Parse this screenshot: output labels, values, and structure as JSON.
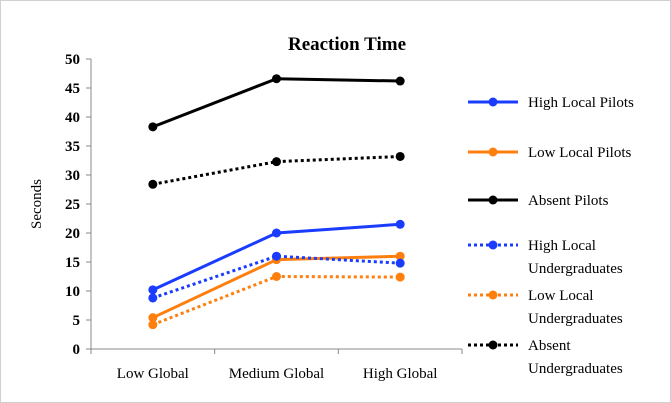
{
  "chart_data": {
    "type": "line",
    "title": "Reaction Time",
    "xlabel": "",
    "ylabel": "Seconds",
    "categories": [
      "Low Global",
      "Medium Global",
      "High Global"
    ],
    "ylim": [
      0,
      50
    ],
    "ytick_step": 5,
    "grid": false,
    "legend_position": "right",
    "series": [
      {
        "name": "High Local Pilots",
        "values": [
          10.2,
          20.0,
          21.5
        ],
        "color": "#1a3cff",
        "dash": "solid"
      },
      {
        "name": "Low Local Pilots",
        "values": [
          5.4,
          15.4,
          16.0
        ],
        "color": "#ff7f0e",
        "dash": "solid"
      },
      {
        "name": "Absent Pilots",
        "values": [
          38.3,
          46.6,
          46.2
        ],
        "color": "#000000",
        "dash": "solid"
      },
      {
        "name": "High Local Undergraduates",
        "values": [
          8.8,
          16.0,
          14.8
        ],
        "color": "#1a3cff",
        "dash": "dotted"
      },
      {
        "name": "Low Local Undergraduates",
        "values": [
          4.2,
          12.5,
          12.4
        ],
        "color": "#ff7f0e",
        "dash": "dotted"
      },
      {
        "name": "Absent Undergraduates",
        "values": [
          28.4,
          32.3,
          33.2
        ],
        "color": "#000000",
        "dash": "dotted"
      }
    ]
  }
}
